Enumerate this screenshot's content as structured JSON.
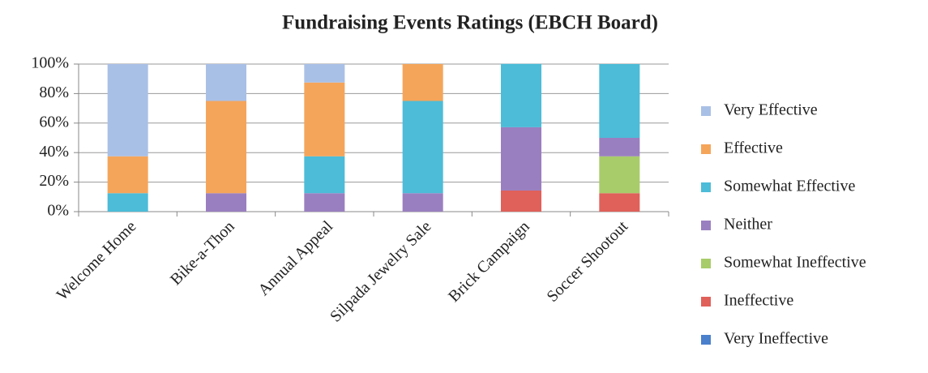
{
  "chart_data": {
    "type": "stacked_bar",
    "title": "Fundraising Events Ratings (EBCH Board)",
    "categories": [
      "Welcome Home",
      "Bike-a-Thon",
      "Annual Appeal",
      "Silpada Jewelry Sale",
      "Brick Campaign",
      "Soccer Shootout"
    ],
    "series": [
      {
        "name": "Very Ineffective",
        "color": "#4a80cc",
        "values": [
          0,
          0,
          0,
          0,
          0,
          0
        ]
      },
      {
        "name": "Ineffective",
        "color": "#e0605a",
        "values": [
          0,
          0,
          0,
          0,
          14.3,
          12.5
        ]
      },
      {
        "name": "Somewhat Ineffective",
        "color": "#a8cc6a",
        "values": [
          0,
          0,
          0,
          0,
          0,
          25
        ]
      },
      {
        "name": "Neither",
        "color": "#9a7fc0",
        "values": [
          0,
          12.5,
          12.5,
          12.5,
          42.9,
          12.5
        ]
      },
      {
        "name": "Somewhat Effective",
        "color": "#4cbcd8",
        "values": [
          12.5,
          0,
          25,
          62.5,
          42.9,
          50
        ]
      },
      {
        "name": "Effective",
        "color": "#f5a55a",
        "values": [
          25,
          62.5,
          50,
          25,
          0,
          0
        ]
      },
      {
        "name": "Very Effective",
        "color": "#a9c0e6",
        "values": [
          62.5,
          25,
          12.5,
          0,
          0,
          0
        ]
      }
    ],
    "ylim": [
      0,
      100
    ],
    "yticks": [
      {
        "value": 0,
        "label": "0%"
      },
      {
        "value": 20,
        "label": "20%"
      },
      {
        "value": 40,
        "label": "40%"
      },
      {
        "value": 60,
        "label": "60%"
      },
      {
        "value": 80,
        "label": "80%"
      },
      {
        "value": 100,
        "label": "100%"
      }
    ],
    "grid": true,
    "legend": "right"
  }
}
